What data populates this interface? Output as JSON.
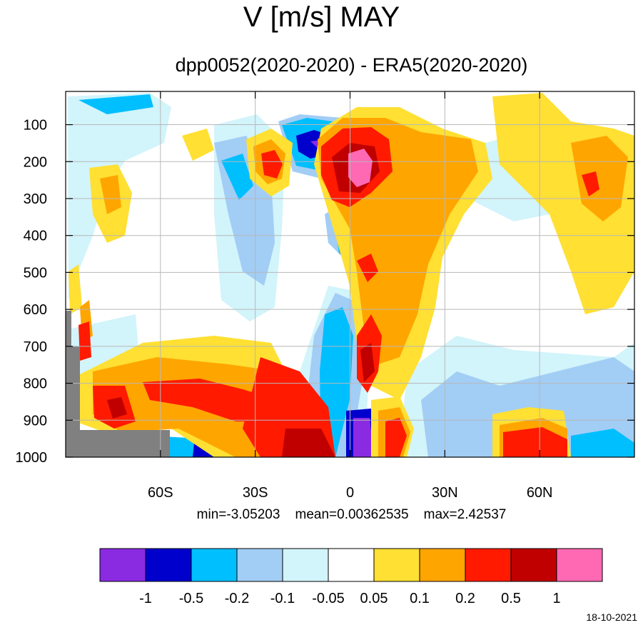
{
  "title": "V [m/s] MAY",
  "subtitle": "dpp0052(2020-2020) - ERA5(2020-2020)",
  "stats": {
    "min_label": "min=-3.05203",
    "mean_label": "mean=0.00362535",
    "max_label": "max=2.42537"
  },
  "date": "18-10-2021",
  "chart_data": {
    "type": "heatmap",
    "title": "V [m/s] MAY",
    "subtitle": "dpp0052(2020-2020) - ERA5(2020-2020)",
    "x_ticks": [
      {
        "value": -60,
        "label": "60S"
      },
      {
        "value": -30,
        "label": "30S"
      },
      {
        "value": 0,
        "label": "0"
      },
      {
        "value": 30,
        "label": "30N"
      },
      {
        "value": 60,
        "label": "60N"
      }
    ],
    "y_ticks": [
      100,
      200,
      300,
      400,
      500,
      600,
      700,
      800,
      900,
      1000
    ],
    "xlim": [
      -90,
      90
    ],
    "ylim": [
      1000,
      10
    ],
    "grid": true,
    "colorbar": {
      "colors": [
        "#8a2be2",
        "#0000cd",
        "#00bfff",
        "#a2cdf5",
        "#d2f4fb",
        "#ffffff",
        "#ffe033",
        "#ffa500",
        "#ff1a00",
        "#c00000",
        "#ff69b4"
      ],
      "tick_labels": [
        "-1",
        "-0.5",
        "-0.2",
        "-0.1",
        "-0.05",
        "0.05",
        "0.1",
        "0.2",
        "0.5",
        "1"
      ]
    }
  }
}
